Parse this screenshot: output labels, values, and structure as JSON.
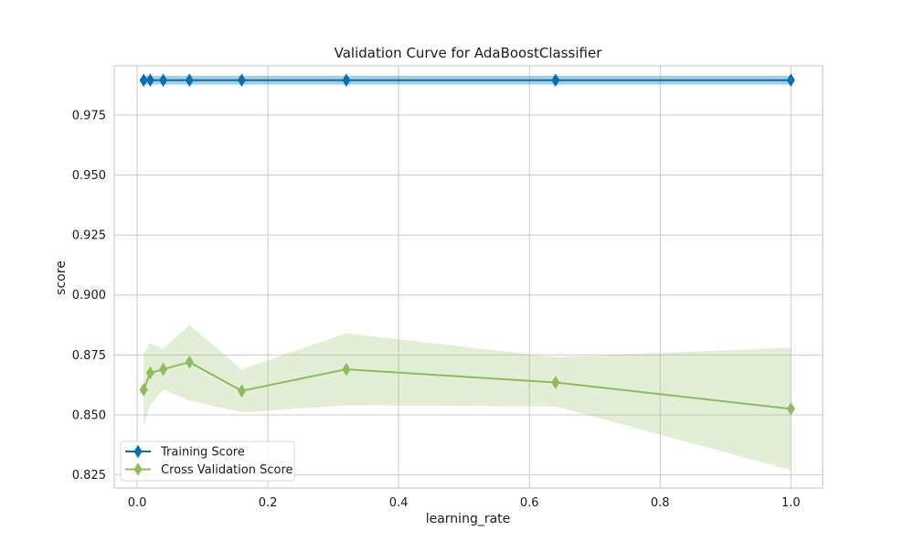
{
  "chart_data": {
    "type": "line",
    "title": "Validation Curve for AdaBoostClassifier",
    "xlabel": "learning_rate",
    "ylabel": "score",
    "xlim": [
      -0.035,
      1.0485
    ],
    "ylim": [
      0.8195,
      0.9955
    ],
    "xticks": [
      0.0,
      0.2,
      0.4,
      0.6,
      0.8,
      1.0
    ],
    "xtick_labels": [
      "0.0",
      "0.2",
      "0.4",
      "0.6",
      "0.8",
      "1.0"
    ],
    "yticks": [
      0.825,
      0.85,
      0.875,
      0.9,
      0.925,
      0.95,
      0.975
    ],
    "ytick_labels": [
      "0.825",
      "0.850",
      "0.875",
      "0.900",
      "0.925",
      "0.950",
      "0.975"
    ],
    "grid": true,
    "legend_position": "lower-left",
    "x": [
      0.01,
      0.02,
      0.04,
      0.08,
      0.16,
      0.32,
      0.64,
      1.0
    ],
    "series": [
      {
        "name": "Training Score",
        "color": "#0072b2",
        "marker": "diamond",
        "values": [
          0.9895,
          0.9895,
          0.9895,
          0.9895,
          0.9895,
          0.9895,
          0.9895,
          0.9895
        ],
        "band_lower": [
          0.9877,
          0.9877,
          0.9877,
          0.9877,
          0.9877,
          0.9877,
          0.9877,
          0.9877
        ],
        "band_upper": [
          0.9913,
          0.9913,
          0.9913,
          0.9913,
          0.9913,
          0.9913,
          0.9913,
          0.9913
        ]
      },
      {
        "name": "Cross Validation Score",
        "color": "#8fbc5a",
        "marker": "diamond",
        "values": [
          0.8605,
          0.8675,
          0.869,
          0.872,
          0.86,
          0.869,
          0.8635,
          0.8525
        ],
        "band_lower": [
          0.845,
          0.854,
          0.8605,
          0.856,
          0.851,
          0.854,
          0.8535,
          0.827
        ],
        "band_upper": [
          0.8755,
          0.88,
          0.8775,
          0.8875,
          0.869,
          0.884,
          0.874,
          0.878
        ]
      }
    ]
  }
}
